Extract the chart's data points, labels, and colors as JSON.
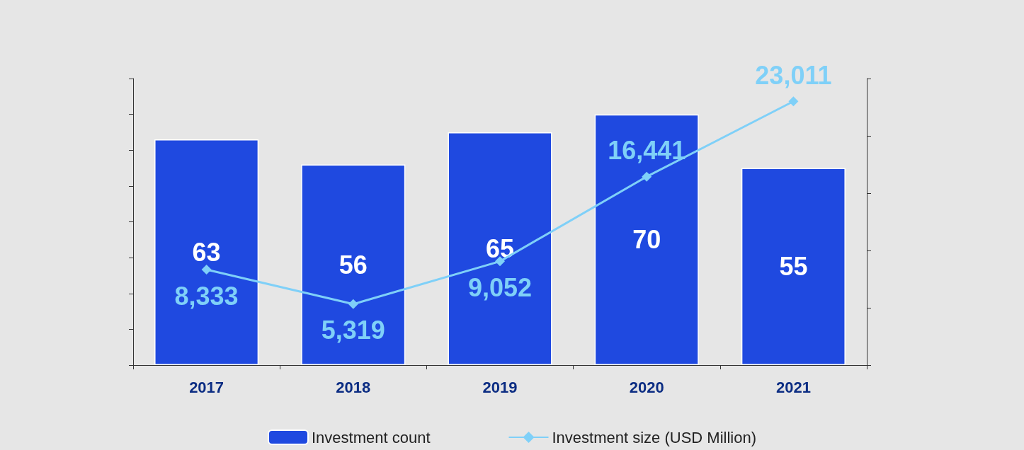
{
  "chart_data": {
    "type": "bar",
    "categories": [
      "2017",
      "2018",
      "2019",
      "2020",
      "2021"
    ],
    "series": [
      {
        "name": "Investment count",
        "color": "#1f49e0",
        "values": [
          63,
          56,
          65,
          70,
          55
        ]
      },
      {
        "name": "Investment size (USD Million)",
        "type": "line",
        "axis": "y2",
        "color": "#7fd0f8",
        "marker": "diamond",
        "values": [
          8333,
          5319,
          9052,
          16441,
          23011
        ],
        "value_labels": [
          "8,333",
          "5,319",
          "9,052",
          "16,441",
          "23,011"
        ]
      }
    ],
    "data_labels": true,
    "ylim": [
      0,
      80
    ],
    "yticks": [
      {
        "value": 0,
        "label": null
      },
      {
        "value": 10,
        "label": null
      },
      {
        "value": 20,
        "label": null
      },
      {
        "value": 30,
        "label": null
      },
      {
        "value": 40,
        "label": null
      },
      {
        "value": 50,
        "label": null
      },
      {
        "value": 60,
        "label": null
      },
      {
        "value": 70,
        "label": null
      },
      {
        "value": 80,
        "label": null
      }
    ],
    "y2lim": [
      0,
      25000
    ],
    "y2ticks": [
      {
        "value": 0,
        "label": null
      },
      {
        "value": 5000,
        "label": null
      },
      {
        "value": 10000,
        "label": null
      },
      {
        "value": 15000,
        "label": null
      },
      {
        "value": 20000,
        "label": null
      },
      {
        "value": 25000,
        "label": null
      }
    ],
    "tick_labels": "x",
    "grid": false,
    "legend": "bottom"
  }
}
